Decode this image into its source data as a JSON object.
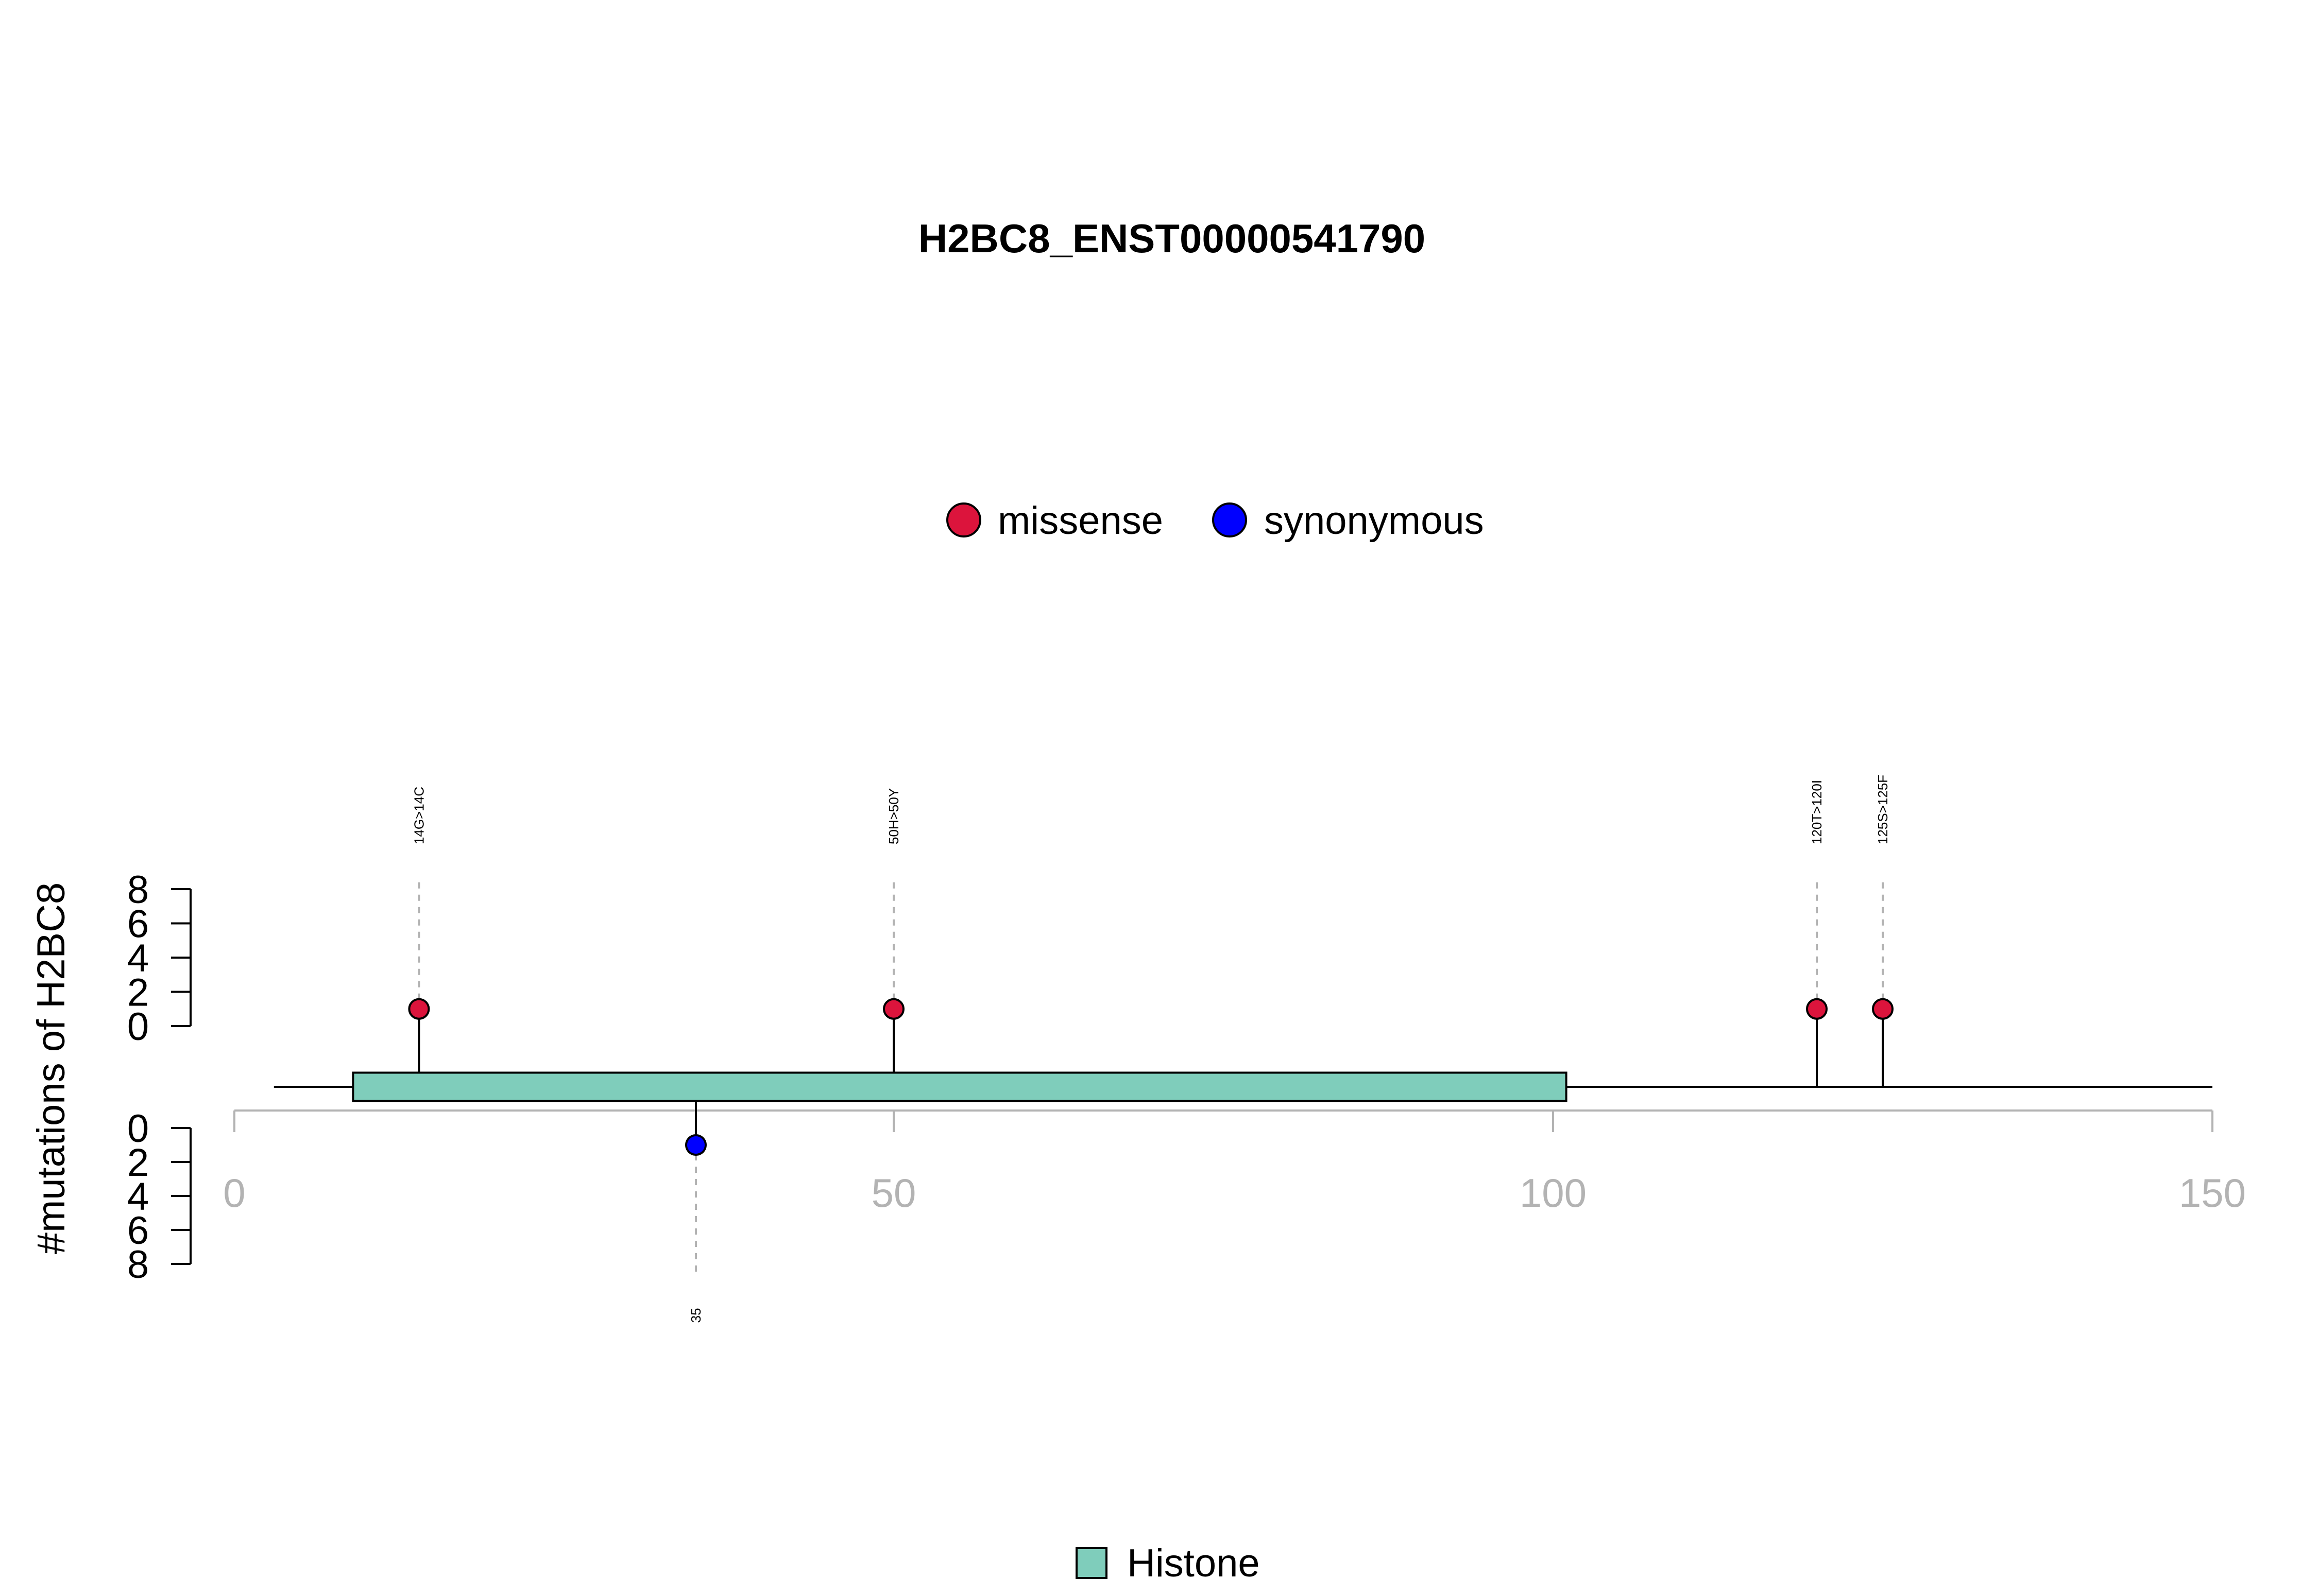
{
  "chart_data": {
    "type": "lollipop",
    "title": "H2BC8_ENST00000541790",
    "ylabel": "#mutations of H2BC8",
    "xlim": [
      0,
      150
    ],
    "x_ticks": [
      0,
      50,
      100,
      150
    ],
    "x_tick_labels": [
      "0",
      "50",
      "100",
      "150"
    ],
    "y_ticks": [
      0,
      2,
      4,
      6,
      8
    ],
    "y_tick_labels": [
      "0",
      "2",
      "4",
      "6",
      "8"
    ],
    "legend": [
      {
        "label": "missense",
        "color": "#dc143c"
      },
      {
        "label": "synonymous",
        "color": "#0000ff"
      }
    ],
    "domain_legend": [
      {
        "label": "Histone",
        "color": "#7fcdbb"
      }
    ],
    "protein_length": 150,
    "domains": [
      {
        "name": "Histone",
        "start": 9,
        "end": 101,
        "color": "#7fcdbb"
      }
    ],
    "mutations": [
      {
        "position": 14,
        "label": "14G>14C",
        "type": "missense",
        "count": 1,
        "side": "top"
      },
      {
        "position": 50,
        "label": "50H>50Y",
        "type": "missense",
        "count": 1,
        "side": "top"
      },
      {
        "position": 120,
        "label": "120T>120I",
        "type": "missense",
        "count": 1,
        "side": "top"
      },
      {
        "position": 125,
        "label": "125S>125F",
        "type": "missense",
        "count": 1,
        "side": "top"
      },
      {
        "position": 35,
        "label": "35",
        "type": "synonymous",
        "count": 1,
        "side": "bottom"
      }
    ],
    "colors": {
      "missense": "#dc143c",
      "synonymous": "#0000ff",
      "domain": "#7fcdbb",
      "axis": "#b3b3b3"
    }
  }
}
